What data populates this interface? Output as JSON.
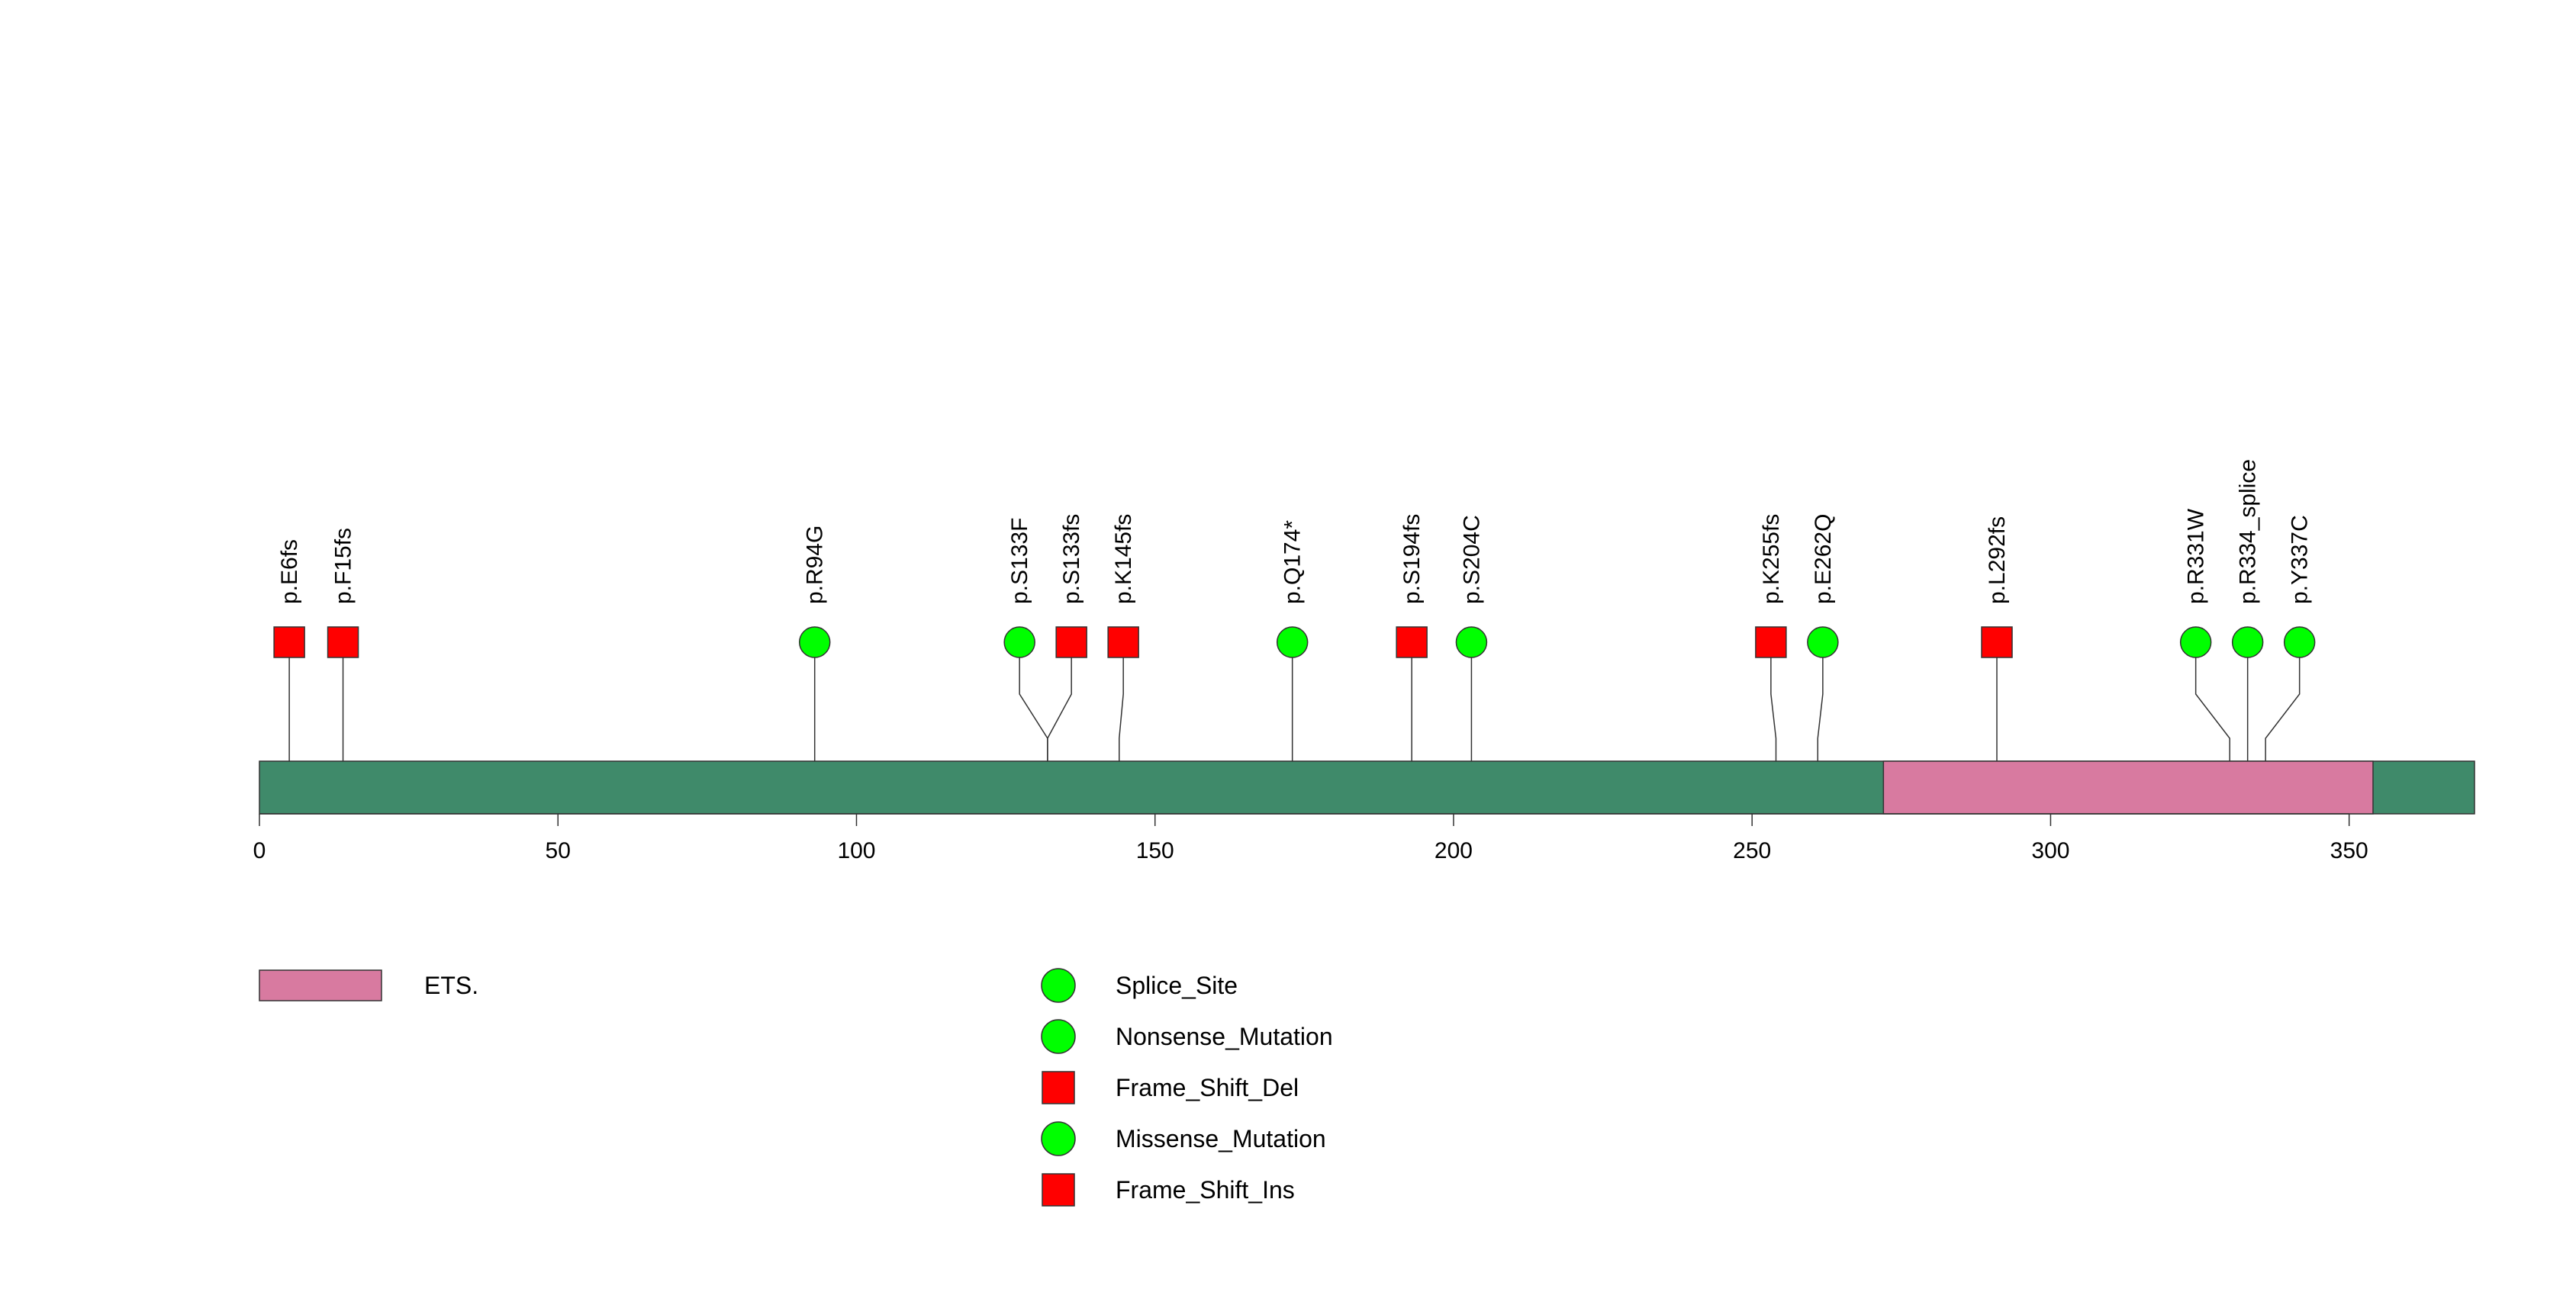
{
  "chart_data": {
    "type": "lollipop",
    "title": "",
    "xlabel": "",
    "ylabel": "",
    "protein_length": 371,
    "xlim": [
      0,
      371
    ],
    "x_ticks": [
      0,
      50,
      100,
      150,
      200,
      250,
      300,
      350
    ],
    "domains": [
      {
        "name": "ETS.",
        "start": 272,
        "end": 354
      }
    ],
    "mutation_types": [
      {
        "name": "Splice_Site",
        "shape": "circle"
      },
      {
        "name": "Nonsense_Mutation",
        "shape": "circle"
      },
      {
        "name": "Frame_Shift_Del",
        "shape": "square"
      },
      {
        "name": "Missense_Mutation",
        "shape": "circle"
      },
      {
        "name": "Frame_Shift_Ins",
        "shape": "square"
      }
    ],
    "mutations": [
      {
        "label": "p.E6fs",
        "position": 5,
        "shape": "square"
      },
      {
        "label": "p.F15fs",
        "position": 14,
        "shape": "square"
      },
      {
        "label": "p.R94G",
        "position": 93,
        "shape": "circle"
      },
      {
        "label": "p.S133F",
        "position": 132,
        "shape": "circle"
      },
      {
        "label": "p.S133fs",
        "position": 132,
        "shape": "square"
      },
      {
        "label": "p.K145fs",
        "position": 144,
        "shape": "square"
      },
      {
        "label": "p.Q174*",
        "position": 173,
        "shape": "circle"
      },
      {
        "label": "p.S194fs",
        "position": 193,
        "shape": "square"
      },
      {
        "label": "p.S204C",
        "position": 203,
        "shape": "circle"
      },
      {
        "label": "p.K255fs",
        "position": 254,
        "shape": "square"
      },
      {
        "label": "p.E262Q",
        "position": 261,
        "shape": "circle"
      },
      {
        "label": "p.L292fs",
        "position": 291,
        "shape": "square"
      },
      {
        "label": "p.R331W",
        "position": 330,
        "shape": "circle"
      },
      {
        "label": "p.R334_splice",
        "position": 333,
        "shape": "circle"
      },
      {
        "label": "p.Y337C",
        "position": 336,
        "shape": "circle"
      }
    ]
  },
  "colors": {
    "backbone": "#3f8a6a",
    "domain": "#d87aa0",
    "circle_marker": "#00ff00",
    "square_marker": "#ff0000",
    "outline": "#333333",
    "stem": "#333333"
  }
}
